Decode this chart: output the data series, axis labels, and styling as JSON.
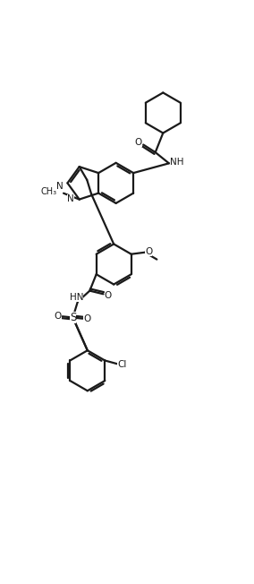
{
  "bg_color": "#ffffff",
  "line_color": "#1a1a1a",
  "line_width": 1.6,
  "fig_width": 2.84,
  "fig_height": 6.52,
  "dpi": 100,
  "xlim": [
    0,
    8.5
  ],
  "ylim": [
    0,
    20.5
  ]
}
